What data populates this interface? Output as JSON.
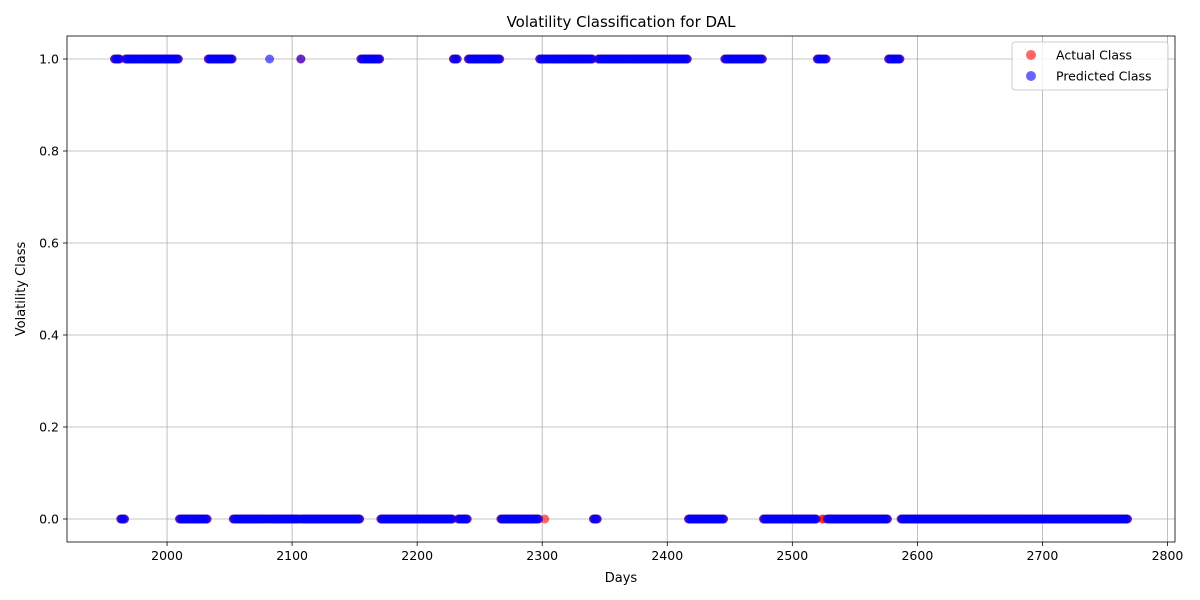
{
  "chart_data": {
    "type": "scatter",
    "title": "Volatility Classification for DAL",
    "xlabel": "Days",
    "ylabel": "Volatility Class",
    "xlim": [
      1920,
      2806
    ],
    "ylim": [
      -0.05,
      1.05
    ],
    "xticks": [
      2000,
      2100,
      2200,
      2300,
      2400,
      2500,
      2600,
      2700,
      2800
    ],
    "yticks": [
      0.0,
      0.2,
      0.4,
      0.6,
      0.8,
      1.0
    ],
    "xtick_labels": [
      "2000",
      "2100",
      "2200",
      "2300",
      "2400",
      "2500",
      "2600",
      "2700",
      "2800"
    ],
    "ytick_labels": [
      "0.0",
      "0.2",
      "0.4",
      "0.6",
      "0.8",
      "1.0"
    ],
    "grid": true,
    "legend_position": "top-right",
    "series": [
      {
        "name": "Actual Class",
        "color": "#ff0000",
        "alpha": 0.6,
        "segments": [
          {
            "start": 1958,
            "end": 1962,
            "class": 1
          },
          {
            "start": 1963,
            "end": 1966,
            "class": 0
          },
          {
            "start": 1967,
            "end": 2009,
            "class": 1
          },
          {
            "start": 2010,
            "end": 2032,
            "class": 0
          },
          {
            "start": 2033,
            "end": 2052,
            "class": 1
          },
          {
            "start": 2053,
            "end": 2081,
            "class": 0
          },
          {
            "start": 2082,
            "end": 2106,
            "class": 0
          },
          {
            "start": 2107,
            "end": 2107,
            "class": 1
          },
          {
            "start": 2108,
            "end": 2154,
            "class": 0
          },
          {
            "start": 2155,
            "end": 2170,
            "class": 1
          },
          {
            "start": 2171,
            "end": 2228,
            "class": 0
          },
          {
            "start": 2229,
            "end": 2232,
            "class": 1
          },
          {
            "start": 2233,
            "end": 2240,
            "class": 0
          },
          {
            "start": 2241,
            "end": 2266,
            "class": 1
          },
          {
            "start": 2267,
            "end": 2297,
            "class": 0
          },
          {
            "start": 2298,
            "end": 2301,
            "class": 1
          },
          {
            "start": 2302,
            "end": 2302,
            "class": 0
          },
          {
            "start": 2303,
            "end": 2340,
            "class": 1
          },
          {
            "start": 2341,
            "end": 2344,
            "class": 0
          },
          {
            "start": 2345,
            "end": 2416,
            "class": 1
          },
          {
            "start": 2417,
            "end": 2445,
            "class": 0
          },
          {
            "start": 2446,
            "end": 2476,
            "class": 1
          },
          {
            "start": 2477,
            "end": 2519,
            "class": 0
          },
          {
            "start": 2520,
            "end": 2523,
            "class": 1
          },
          {
            "start": 2524,
            "end": 2525,
            "class": 0
          },
          {
            "start": 2526,
            "end": 2527,
            "class": 1
          },
          {
            "start": 2528,
            "end": 2576,
            "class": 0
          },
          {
            "start": 2577,
            "end": 2586,
            "class": 1
          },
          {
            "start": 2587,
            "end": 2768,
            "class": 0
          }
        ]
      },
      {
        "name": "Predicted Class",
        "color": "#0000ff",
        "alpha": 0.6,
        "segments": [
          {
            "start": 1958,
            "end": 1962,
            "class": 1
          },
          {
            "start": 1963,
            "end": 1966,
            "class": 0
          },
          {
            "start": 1967,
            "end": 2009,
            "class": 1
          },
          {
            "start": 2010,
            "end": 2032,
            "class": 0
          },
          {
            "start": 2033,
            "end": 2052,
            "class": 1
          },
          {
            "start": 2053,
            "end": 2081,
            "class": 0
          },
          {
            "start": 2082,
            "end": 2082,
            "class": 1
          },
          {
            "start": 2083,
            "end": 2106,
            "class": 0
          },
          {
            "start": 2107,
            "end": 2107,
            "class": 1
          },
          {
            "start": 2108,
            "end": 2154,
            "class": 0
          },
          {
            "start": 2155,
            "end": 2170,
            "class": 1
          },
          {
            "start": 2171,
            "end": 2228,
            "class": 0
          },
          {
            "start": 2229,
            "end": 2232,
            "class": 1
          },
          {
            "start": 2233,
            "end": 2240,
            "class": 0
          },
          {
            "start": 2241,
            "end": 2266,
            "class": 1
          },
          {
            "start": 2267,
            "end": 2297,
            "class": 0
          },
          {
            "start": 2298,
            "end": 2340,
            "class": 1
          },
          {
            "start": 2341,
            "end": 2344,
            "class": 0
          },
          {
            "start": 2345,
            "end": 2416,
            "class": 1
          },
          {
            "start": 2417,
            "end": 2445,
            "class": 0
          },
          {
            "start": 2446,
            "end": 2476,
            "class": 1
          },
          {
            "start": 2477,
            "end": 2519,
            "class": 0
          },
          {
            "start": 2520,
            "end": 2527,
            "class": 1
          },
          {
            "start": 2528,
            "end": 2576,
            "class": 0
          },
          {
            "start": 2577,
            "end": 2586,
            "class": 1
          },
          {
            "start": 2587,
            "end": 2768,
            "class": 0
          }
        ]
      }
    ]
  }
}
